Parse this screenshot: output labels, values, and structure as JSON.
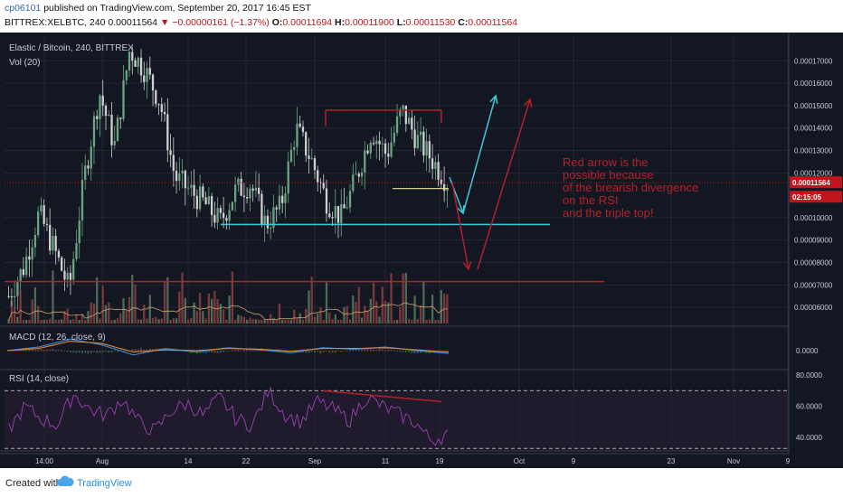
{
  "header": {
    "user": "cp06101",
    "published_text": "published on TradingView.com, September 20, 2017 16:45 EST",
    "symbol": "BITTREX:XELBTC, 240",
    "last": "0.00011564",
    "change": "−0.00000161 (−1.37%)",
    "o_label": "O:",
    "o_value": "0.00011694",
    "h_label": "H:",
    "h_value": "0.00011900",
    "l_label": "L:",
    "l_value": "0.00011530",
    "c_label": "C:",
    "c_value": "0.00011564"
  },
  "chart_data": [
    {
      "type": "candlestick",
      "title": "Elastic / Bitcoin, 240, BITTREX",
      "ylim": [
        5.2e-05,
        0.000181
      ],
      "x_ticks": [
        "14:00",
        "Aug",
        "14",
        "22",
        "Sep",
        "11",
        "19",
        "Oct",
        "9",
        "23",
        "Nov",
        "9"
      ],
      "y_ticks": [
        "0.00017000",
        "0.00016000",
        "0.00015000",
        "0.00014000",
        "0.00013000",
        "0.00012000",
        "0.00010000",
        "0.00009000",
        "0.00008000",
        "0.00007000",
        "0.00006000"
      ],
      "last_price_label": "0.00011564",
      "countdown_label": "02:15:05",
      "price_path": [
        6.5e-05,
        7.8e-05,
        0.000102,
        8.6e-05,
        6.8e-05,
        0.000118,
        0.000156,
        0.000132,
        0.000175,
        0.000166,
        0.000152,
        0.000118,
        0.000112,
        0.000106,
        9.8e-05,
        0.000112,
        0.000115,
        9.7e-05,
        0.000105,
        0.00014,
        0.000126,
        0.000108,
        0.0001,
        0.000118,
        0.000139,
        0.000128,
        0.000148,
        0.000135,
        0.000126,
        0.000116
      ],
      "annotation": [
        "Red arrow is the",
        "possible because",
        "of the brearish divergence",
        "on the RSI",
        "and the triple top!"
      ],
      "levels": [
        {
          "name": "resistance",
          "value": 0.000148,
          "color": "#b3212a"
        },
        {
          "name": "support",
          "value": 9.7e-05,
          "color": "#3dc9dc"
        },
        {
          "name": "lower-support",
          "value": 7.15e-05,
          "color": "#b3212a"
        },
        {
          "name": "inner-support",
          "value": 0.000113,
          "color": "#e8e2a0"
        }
      ]
    },
    {
      "type": "bar",
      "title": "Vol (20)"
    },
    {
      "type": "line",
      "title": "MACD (12, 26, close, 9)",
      "y_ticks": [
        "0.0000"
      ],
      "series": [
        {
          "name": "MACD",
          "values": [
            0,
            0.5,
            1.6,
            0.8,
            -0.6,
            0.3,
            -0.2,
            0.4,
            0.1,
            -0.3,
            0.4,
            0.2,
            0.5,
            0.0,
            -0.4
          ]
        },
        {
          "name": "Signal",
          "values": [
            0,
            0.3,
            1.3,
            1.0,
            -0.2,
            0.1,
            0.0,
            0.3,
            0.2,
            -0.1,
            0.3,
            0.3,
            0.4,
            0.1,
            -0.2
          ]
        }
      ]
    },
    {
      "type": "line",
      "title": "RSI (14, close)",
      "ylim": [
        32,
        83
      ],
      "y_ticks": [
        "80.0000",
        "60.0000",
        "40.0000"
      ],
      "levels": [
        70,
        30
      ],
      "rsi_path": [
        45,
        60,
        52,
        48,
        68,
        58,
        54,
        65,
        50,
        44,
        57,
        62,
        54,
        66,
        52,
        48,
        70,
        55,
        50,
        63,
        58,
        51,
        66,
        60,
        55,
        50,
        38,
        42
      ],
      "divergence": [
        70,
        63
      ]
    }
  ],
  "footer": {
    "created": "Created with",
    "brand": "TradingView"
  },
  "colors": {
    "background": "#131722",
    "up": "#6ba583",
    "down": "#d0d0d0",
    "volume": "#7a3a3a",
    "rsi": "#8e3fa3",
    "accent_red": "#b3212a",
    "accent_cyan": "#3dc9dc"
  }
}
